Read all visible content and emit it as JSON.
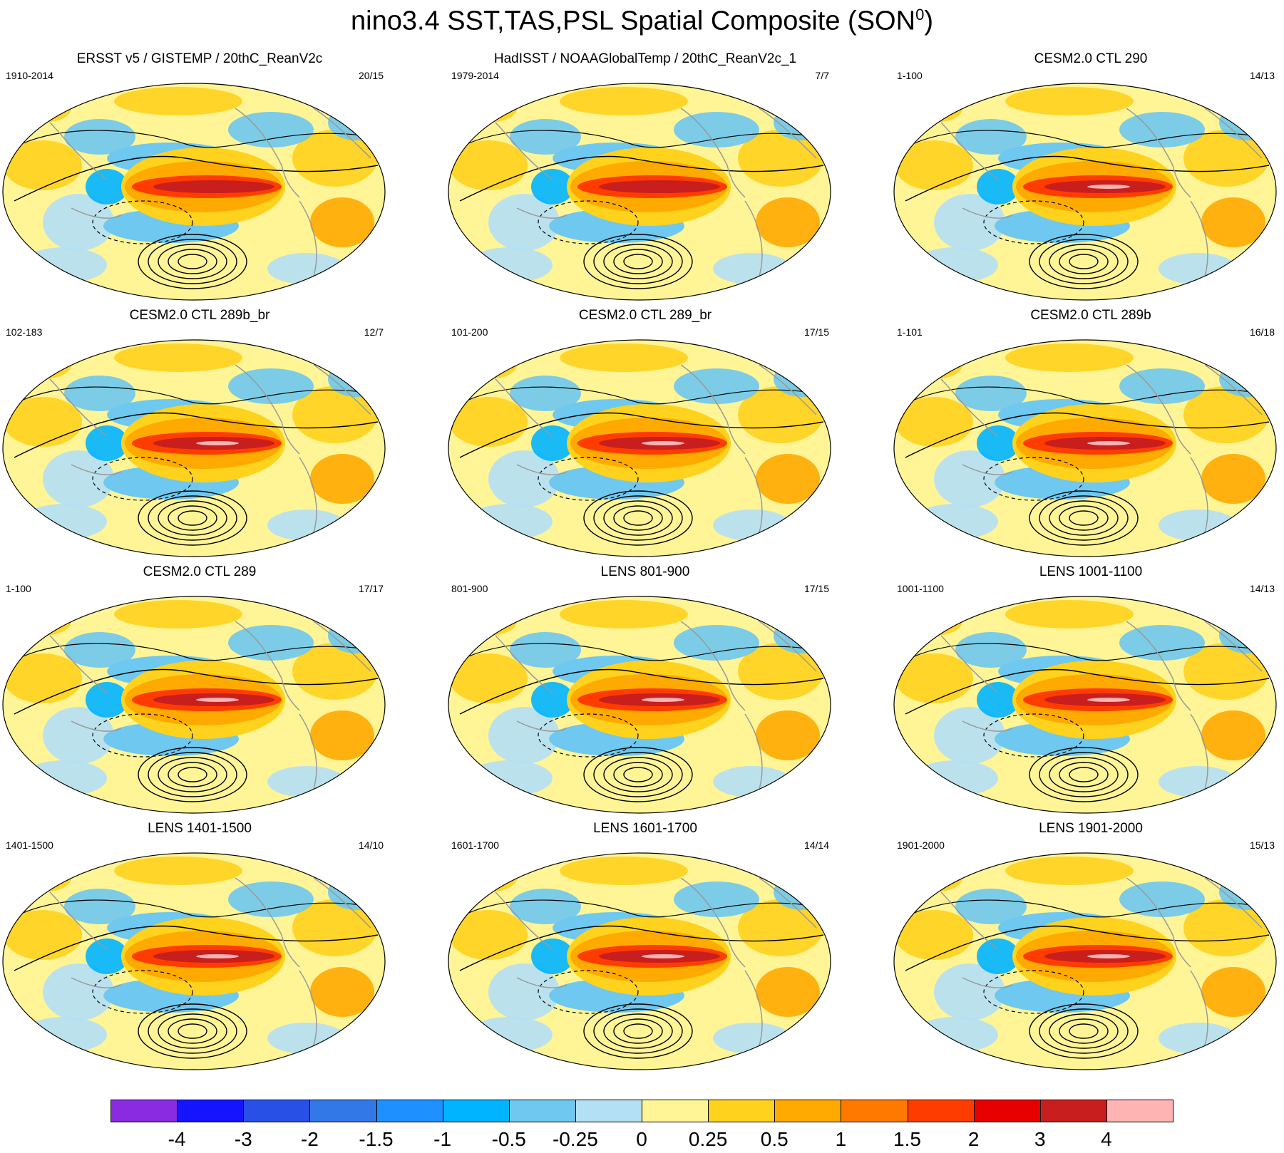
{
  "title": "nino3.4 SST,TAS,PSL Spatial Composite (SON",
  "title_sup": "0",
  "title_close": ")",
  "panels": [
    {
      "title": "ERSST v5 / GISTEMP / 20thC_ReanV2c",
      "left": "1910-2014",
      "right": "20/15"
    },
    {
      "title": "HadISST / NOAAGlobalTemp / 20thC_ReanV2c_1",
      "left": "1979-2014",
      "right": "7/7"
    },
    {
      "title": "CESM2.0 CTL 290",
      "left": "1-100",
      "right": "14/13"
    },
    {
      "title": "CESM2.0 CTL 289b_br",
      "left": "102-183",
      "right": "12/7"
    },
    {
      "title": "CESM2.0 CTL 289_br",
      "left": "101-200",
      "right": "17/15"
    },
    {
      "title": "CESM2.0 CTL 289b",
      "left": "1-101",
      "right": "16/18"
    },
    {
      "title": "CESM2.0 CTL 289",
      "left": "1-100",
      "right": "17/17"
    },
    {
      "title": "LENS 801-900",
      "left": "801-900",
      "right": "17/15"
    },
    {
      "title": "LENS 1001-1100",
      "left": "1001-1100",
      "right": "14/13"
    },
    {
      "title": "LENS 1401-1500",
      "left": "1401-1500",
      "right": "14/10"
    },
    {
      "title": "LENS 1601-1700",
      "left": "1601-1700",
      "right": "14/14"
    },
    {
      "title": "LENS 1901-2000",
      "left": "1901-2000",
      "right": "15/13"
    }
  ],
  "colorbar": {
    "colors": [
      "#8a2be2",
      "#1414ff",
      "#2850e6",
      "#3278e6",
      "#1e90ff",
      "#00b4ff",
      "#6ec8f0",
      "#b4e0f5",
      "#fff596",
      "#ffd21e",
      "#ffaa00",
      "#ff7800",
      "#ff3c00",
      "#e60000",
      "#c81e1e",
      "#ffb4b4"
    ],
    "labels": [
      "-4",
      "-3",
      "-2",
      "-1.5",
      "-1",
      "-0.5",
      "-0.25",
      "0",
      "0.25",
      "0.5",
      "1",
      "1.5",
      "2",
      "3",
      "4"
    ]
  }
}
